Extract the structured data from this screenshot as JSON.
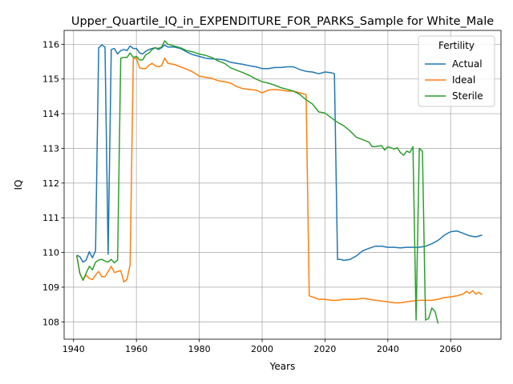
{
  "chart_data": {
    "type": "line",
    "title": "Upper_Quartile_IQ_in_EXPENDITURE_FOR_PARKS_Sample for White_Male",
    "xlabel": "Years",
    "ylabel": "IQ",
    "xlim": [
      1937,
      2076
    ],
    "ylim": [
      107.5,
      116.4
    ],
    "xticks": [
      1940,
      1960,
      1980,
      2000,
      2020,
      2040,
      2060
    ],
    "yticks": [
      108,
      109,
      110,
      111,
      112,
      113,
      114,
      115,
      116
    ],
    "grid": true,
    "legend": {
      "title": "Fertility",
      "placement": "top-right"
    },
    "series": [
      {
        "name": "Actual",
        "color": "#1f77b4",
        "points": [
          [
            1941,
            109.92
          ],
          [
            1942,
            109.88
          ],
          [
            1943,
            109.72
          ],
          [
            1944,
            109.78
          ],
          [
            1945,
            110.02
          ],
          [
            1946,
            109.85
          ],
          [
            1947,
            110.05
          ],
          [
            1948,
            115.9
          ],
          [
            1949,
            115.98
          ],
          [
            1950,
            115.92
          ],
          [
            1951,
            109.95
          ],
          [
            1952,
            115.85
          ],
          [
            1953,
            115.88
          ],
          [
            1954,
            115.72
          ],
          [
            1955,
            115.82
          ],
          [
            1956,
            115.85
          ],
          [
            1957,
            115.82
          ],
          [
            1958,
            115.95
          ],
          [
            1959,
            115.88
          ],
          [
            1960,
            115.88
          ],
          [
            1961,
            115.75
          ],
          [
            1962,
            115.72
          ],
          [
            1963,
            115.8
          ],
          [
            1964,
            115.85
          ],
          [
            1965,
            115.88
          ],
          [
            1966,
            115.9
          ],
          [
            1967,
            115.85
          ],
          [
            1968,
            115.9
          ],
          [
            1969,
            115.98
          ],
          [
            1970,
            115.92
          ],
          [
            1972,
            115.92
          ],
          [
            1974,
            115.88
          ],
          [
            1976,
            115.78
          ],
          [
            1978,
            115.7
          ],
          [
            1980,
            115.65
          ],
          [
            1982,
            115.6
          ],
          [
            1984,
            115.58
          ],
          [
            1986,
            115.57
          ],
          [
            1988,
            115.55
          ],
          [
            1990,
            115.48
          ],
          [
            1992,
            115.45
          ],
          [
            1994,
            115.42
          ],
          [
            1996,
            115.38
          ],
          [
            1998,
            115.35
          ],
          [
            2000,
            115.3
          ],
          [
            2002,
            115.3
          ],
          [
            2004,
            115.33
          ],
          [
            2006,
            115.33
          ],
          [
            2008,
            115.35
          ],
          [
            2010,
            115.35
          ],
          [
            2012,
            115.27
          ],
          [
            2014,
            115.22
          ],
          [
            2016,
            115.2
          ],
          [
            2018,
            115.15
          ],
          [
            2020,
            115.2
          ],
          [
            2022,
            115.18
          ],
          [
            2023,
            115.15
          ],
          [
            2024,
            109.8
          ],
          [
            2025,
            109.8
          ],
          [
            2026,
            109.77
          ],
          [
            2028,
            109.8
          ],
          [
            2030,
            109.9
          ],
          [
            2032,
            110.05
          ],
          [
            2034,
            110.12
          ],
          [
            2036,
            110.18
          ],
          [
            2038,
            110.18
          ],
          [
            2040,
            110.15
          ],
          [
            2042,
            110.15
          ],
          [
            2044,
            110.13
          ],
          [
            2046,
            110.15
          ],
          [
            2048,
            110.15
          ],
          [
            2050,
            110.15
          ],
          [
            2052,
            110.18
          ],
          [
            2054,
            110.25
          ],
          [
            2056,
            110.35
          ],
          [
            2058,
            110.5
          ],
          [
            2060,
            110.6
          ],
          [
            2062,
            110.62
          ],
          [
            2064,
            110.55
          ],
          [
            2066,
            110.48
          ],
          [
            2068,
            110.45
          ],
          [
            2070,
            110.5
          ]
        ]
      },
      {
        "name": "Ideal",
        "color": "#ff7f0e",
        "points": [
          [
            1941,
            109.92
          ],
          [
            1942,
            109.4
          ],
          [
            1943,
            109.2
          ],
          [
            1944,
            109.35
          ],
          [
            1945,
            109.25
          ],
          [
            1946,
            109.22
          ],
          [
            1947,
            109.35
          ],
          [
            1948,
            109.45
          ],
          [
            1949,
            109.3
          ],
          [
            1950,
            109.3
          ],
          [
            1951,
            109.45
          ],
          [
            1952,
            109.6
          ],
          [
            1953,
            109.42
          ],
          [
            1954,
            109.45
          ],
          [
            1955,
            109.48
          ],
          [
            1956,
            109.15
          ],
          [
            1957,
            109.22
          ],
          [
            1958,
            109.65
          ],
          [
            1959,
            115.58
          ],
          [
            1960,
            115.6
          ],
          [
            1961,
            115.32
          ],
          [
            1962,
            115.3
          ],
          [
            1963,
            115.3
          ],
          [
            1964,
            115.4
          ],
          [
            1965,
            115.45
          ],
          [
            1966,
            115.38
          ],
          [
            1967,
            115.35
          ],
          [
            1968,
            115.38
          ],
          [
            1969,
            115.6
          ],
          [
            1970,
            115.45
          ],
          [
            1972,
            115.42
          ],
          [
            1974,
            115.35
          ],
          [
            1976,
            115.28
          ],
          [
            1978,
            115.2
          ],
          [
            1980,
            115.08
          ],
          [
            1982,
            115.05
          ],
          [
            1984,
            115.02
          ],
          [
            1986,
            114.95
          ],
          [
            1988,
            114.92
          ],
          [
            1990,
            114.88
          ],
          [
            1992,
            114.78
          ],
          [
            1994,
            114.72
          ],
          [
            1996,
            114.7
          ],
          [
            1998,
            114.68
          ],
          [
            2000,
            114.6
          ],
          [
            2002,
            114.68
          ],
          [
            2004,
            114.7
          ],
          [
            2006,
            114.68
          ],
          [
            2008,
            114.65
          ],
          [
            2010,
            114.65
          ],
          [
            2012,
            114.6
          ],
          [
            2014,
            114.55
          ],
          [
            2015,
            108.75
          ],
          [
            2016,
            108.72
          ],
          [
            2018,
            108.65
          ],
          [
            2020,
            108.65
          ],
          [
            2022,
            108.62
          ],
          [
            2024,
            108.62
          ],
          [
            2026,
            108.65
          ],
          [
            2028,
            108.65
          ],
          [
            2030,
            108.65
          ],
          [
            2032,
            108.68
          ],
          [
            2034,
            108.65
          ],
          [
            2036,
            108.62
          ],
          [
            2038,
            108.6
          ],
          [
            2040,
            108.58
          ],
          [
            2042,
            108.55
          ],
          [
            2044,
            108.55
          ],
          [
            2046,
            108.58
          ],
          [
            2048,
            108.6
          ],
          [
            2050,
            108.62
          ],
          [
            2052,
            108.62
          ],
          [
            2054,
            108.62
          ],
          [
            2056,
            108.65
          ],
          [
            2058,
            108.7
          ],
          [
            2060,
            108.72
          ],
          [
            2062,
            108.75
          ],
          [
            2064,
            108.8
          ],
          [
            2065,
            108.88
          ],
          [
            2066,
            108.82
          ],
          [
            2067,
            108.9
          ],
          [
            2068,
            108.8
          ],
          [
            2069,
            108.85
          ],
          [
            2070,
            108.78
          ]
        ]
      },
      {
        "name": "Sterile",
        "color": "#2ca02c",
        "points": [
          [
            1941,
            109.92
          ],
          [
            1942,
            109.4
          ],
          [
            1943,
            109.2
          ],
          [
            1944,
            109.4
          ],
          [
            1945,
            109.6
          ],
          [
            1946,
            109.5
          ],
          [
            1947,
            109.72
          ],
          [
            1948,
            109.78
          ],
          [
            1949,
            109.8
          ],
          [
            1950,
            109.75
          ],
          [
            1951,
            109.72
          ],
          [
            1952,
            109.8
          ],
          [
            1953,
            109.7
          ],
          [
            1954,
            109.78
          ],
          [
            1955,
            115.6
          ],
          [
            1956,
            115.62
          ],
          [
            1957,
            115.62
          ],
          [
            1958,
            115.75
          ],
          [
            1959,
            115.62
          ],
          [
            1960,
            115.65
          ],
          [
            1961,
            115.55
          ],
          [
            1962,
            115.55
          ],
          [
            1963,
            115.7
          ],
          [
            1964,
            115.75
          ],
          [
            1965,
            115.85
          ],
          [
            1966,
            115.9
          ],
          [
            1967,
            115.88
          ],
          [
            1968,
            115.92
          ],
          [
            1969,
            116.1
          ],
          [
            1970,
            116.0
          ],
          [
            1972,
            115.95
          ],
          [
            1974,
            115.9
          ],
          [
            1976,
            115.82
          ],
          [
            1978,
            115.78
          ],
          [
            1980,
            115.72
          ],
          [
            1982,
            115.68
          ],
          [
            1984,
            115.62
          ],
          [
            1986,
            115.52
          ],
          [
            1988,
            115.45
          ],
          [
            1990,
            115.32
          ],
          [
            1992,
            115.25
          ],
          [
            1994,
            115.18
          ],
          [
            1996,
            115.1
          ],
          [
            1998,
            115.0
          ],
          [
            2000,
            114.92
          ],
          [
            2002,
            114.88
          ],
          [
            2004,
            114.82
          ],
          [
            2006,
            114.75
          ],
          [
            2008,
            114.7
          ],
          [
            2010,
            114.65
          ],
          [
            2012,
            114.55
          ],
          [
            2014,
            114.4
          ],
          [
            2016,
            114.28
          ],
          [
            2018,
            114.05
          ],
          [
            2020,
            114.02
          ],
          [
            2022,
            113.88
          ],
          [
            2024,
            113.75
          ],
          [
            2026,
            113.65
          ],
          [
            2028,
            113.5
          ],
          [
            2030,
            113.32
          ],
          [
            2032,
            113.25
          ],
          [
            2034,
            113.18
          ],
          [
            2035,
            113.05
          ],
          [
            2036,
            113.05
          ],
          [
            2038,
            113.08
          ],
          [
            2039,
            112.95
          ],
          [
            2040,
            113.05
          ],
          [
            2042,
            112.98
          ],
          [
            2043,
            113.02
          ],
          [
            2044,
            112.88
          ],
          [
            2045,
            112.8
          ],
          [
            2046,
            112.92
          ],
          [
            2047,
            112.88
          ],
          [
            2048,
            113.05
          ],
          [
            2049,
            108.05
          ],
          [
            2050,
            113.0
          ],
          [
            2051,
            112.92
          ],
          [
            2052,
            108.05
          ],
          [
            2053,
            108.1
          ],
          [
            2054,
            108.4
          ],
          [
            2055,
            108.3
          ],
          [
            2056,
            107.95
          ]
        ]
      }
    ]
  }
}
